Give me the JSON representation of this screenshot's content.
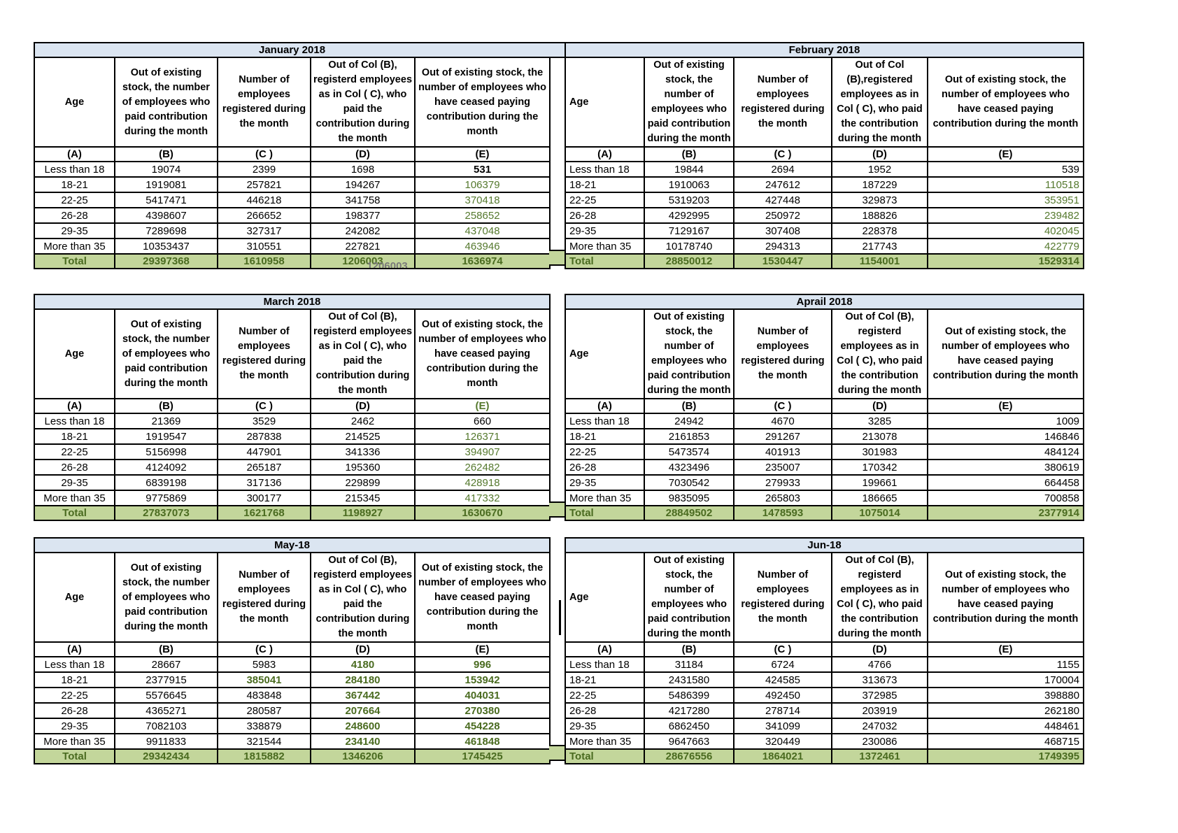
{
  "colors": {
    "title_bg": "#dbe5f1",
    "total_bg": "#c3d69b",
    "green": "#55792e",
    "dark_green": "#4a6b20",
    "ghost_gray": "#7a7a7a"
  },
  "column_letters": [
    "(A)",
    "(B)",
    "(C )",
    "(D)",
    "(E)"
  ],
  "overlay": {
    "text": "1206003"
  },
  "tables": [
    {
      "title": "January 2018",
      "variant": "left",
      "ghost_in_total_d": true,
      "letter_e_green": false,
      "headers": {
        "age": "Age",
        "b": "Out of existing stock, the number of employees who paid contribution during the month",
        "c": "Number of employees registered during the month",
        "d": "Out of Col (B), registerd employees as in Col ( C), who paid the contribution during the month",
        "e": "Out of existing stock, the number of  employees  who have ceased paying contribution during the month"
      },
      "rows": [
        {
          "age": "Less than 18",
          "values": [
            "19074",
            "2399",
            "1698",
            "531"
          ],
          "value_styles": [
            "",
            "",
            "",
            "b"
          ]
        },
        {
          "age": "18-21",
          "values": [
            "1919081",
            "257821",
            "194267",
            "106379"
          ],
          "value_styles": [
            "",
            "",
            "",
            "g"
          ]
        },
        {
          "age": "22-25",
          "values": [
            "5417471",
            "446218",
            "341758",
            "370418"
          ],
          "value_styles": [
            "",
            "",
            "",
            "g"
          ]
        },
        {
          "age": "26-28",
          "values": [
            "4398607",
            "266652",
            "198377",
            "258652"
          ],
          "value_styles": [
            "",
            "",
            "",
            "g"
          ]
        },
        {
          "age": "29-35",
          "values": [
            "7289698",
            "327317",
            "242082",
            "437048"
          ],
          "value_styles": [
            "",
            "",
            "",
            "g"
          ]
        },
        {
          "age": "More than 35",
          "values": [
            "10353437",
            "310551",
            "227821",
            "463946"
          ],
          "value_styles": [
            "",
            "",
            "",
            "g"
          ]
        }
      ],
      "total": {
        "label": "Total",
        "values": [
          "29397368",
          "1610958",
          "1206003",
          "1636974"
        ],
        "value_styles": [
          "",
          "",
          "",
          ""
        ]
      }
    },
    {
      "title": "February 2018",
      "variant": "right",
      "ghost_in_total_d": false,
      "letter_e_green": false,
      "headers": {
        "age": "Age",
        "b": "Out of existing stock, the number of employees who paid contribution during the month",
        "c": "Number of employees registered during the month",
        "d": "Out of Col (B),registered employees as in Col ( C), who paid the contribution during the month",
        "e": "Out of existing stock, the number of  employees  who have ceased paying contribution during the month"
      },
      "rows": [
        {
          "age": "Less than 18",
          "values": [
            "19844",
            "2694",
            "1952",
            "539"
          ],
          "value_styles": [
            "",
            "",
            "",
            ""
          ]
        },
        {
          "age": "18-21",
          "values": [
            "1910063",
            "247612",
            "187229",
            "110518"
          ],
          "value_styles": [
            "",
            "",
            "",
            "g"
          ]
        },
        {
          "age": "22-25",
          "values": [
            "5319203",
            "427448",
            "329873",
            "353951"
          ],
          "value_styles": [
            "",
            "",
            "",
            "g"
          ]
        },
        {
          "age": "26-28",
          "values": [
            "4292995",
            "250972",
            "188826",
            "239482"
          ],
          "value_styles": [
            "",
            "",
            "",
            "g"
          ]
        },
        {
          "age": "29-35",
          "values": [
            "7129167",
            "307408",
            "228378",
            "402045"
          ],
          "value_styles": [
            "",
            "",
            "",
            "g"
          ]
        },
        {
          "age": "More than 35",
          "values": [
            "10178740",
            "294313",
            "217743",
            "422779"
          ],
          "value_styles": [
            "",
            "",
            "",
            "g"
          ]
        }
      ],
      "total": {
        "label": "Total",
        "values": [
          "28850012",
          "1530447",
          "1154001",
          "1529314"
        ],
        "value_styles": [
          "",
          "",
          "",
          ""
        ]
      }
    },
    {
      "title": "March 2018",
      "variant": "left",
      "ghost_in_total_d": false,
      "letter_e_green": true,
      "headers": {
        "age": "Age",
        "b": "Out of existing stock, the number of employees who paid contribution during the month",
        "c": "Number of employees registered during the month",
        "d": "Out of Col (B), registerd employees as in Col ( C), who paid the contribution during the month",
        "e": "Out of existing stock, the number of  employees  who have ceased paying contribution during the month"
      },
      "rows": [
        {
          "age": "Less than 18",
          "values": [
            "21369",
            "3529",
            "2462",
            "660"
          ],
          "value_styles": [
            "",
            "",
            "",
            ""
          ]
        },
        {
          "age": "18-21",
          "values": [
            "1919547",
            "287838",
            "214525",
            "126371"
          ],
          "value_styles": [
            "",
            "",
            "",
            "g"
          ]
        },
        {
          "age": "22-25",
          "values": [
            "5156998",
            "447901",
            "341336",
            "394907"
          ],
          "value_styles": [
            "",
            "",
            "",
            "g"
          ]
        },
        {
          "age": "26-28",
          "values": [
            "4124092",
            "265187",
            "195360",
            "262482"
          ],
          "value_styles": [
            "",
            "",
            "",
            "g"
          ]
        },
        {
          "age": "29-35",
          "values": [
            "6839198",
            "317136",
            "229899",
            "428918"
          ],
          "value_styles": [
            "",
            "",
            "",
            "g"
          ]
        },
        {
          "age": "More than 35",
          "values": [
            "9775869",
            "300177",
            "215345",
            "417332"
          ],
          "value_styles": [
            "",
            "",
            "",
            "g"
          ]
        }
      ],
      "total": {
        "label": "Total",
        "values": [
          "27837073",
          "1621768",
          "1198927",
          "1630670"
        ],
        "value_styles": [
          "",
          "",
          "",
          ""
        ]
      }
    },
    {
      "title": "Aprail 2018",
      "variant": "right",
      "ghost_in_total_d": false,
      "letter_e_green": false,
      "headers": {
        "age": "Age",
        "b": "Out of existing stock, the number of employees who paid contribution during the month",
        "c": "Number of employees registered during the month",
        "d": "Out of Col (B), registerd employees as in Col ( C), who paid the contribution during the month",
        "e": "Out of existing stock, the number of  employees  who have ceased paying contribution during the month"
      },
      "rows": [
        {
          "age": "Less than 18",
          "values": [
            "24942",
            "4670",
            "3285",
            "1009"
          ],
          "value_styles": [
            "",
            "",
            "",
            ""
          ]
        },
        {
          "age": "18-21",
          "values": [
            "2161853",
            "291267",
            "213078",
            "146846"
          ],
          "value_styles": [
            "",
            "",
            "",
            ""
          ]
        },
        {
          "age": "22-25",
          "values": [
            "5473574",
            "401913",
            "301983",
            "484124"
          ],
          "value_styles": [
            "",
            "",
            "",
            ""
          ]
        },
        {
          "age": "26-28",
          "values": [
            "4323496",
            "235007",
            "170342",
            "380619"
          ],
          "value_styles": [
            "",
            "",
            "",
            ""
          ]
        },
        {
          "age": "29-35",
          "values": [
            "7030542",
            "279933",
            "199661",
            "664458"
          ],
          "value_styles": [
            "",
            "",
            "",
            ""
          ]
        },
        {
          "age": "More than 35",
          "values": [
            "9835095",
            "265803",
            "186665",
            "700858"
          ],
          "value_styles": [
            "",
            "",
            "",
            ""
          ]
        }
      ],
      "total": {
        "label": "Total",
        "values": [
          "28849502",
          "1478593",
          "1075014",
          "2377914"
        ],
        "value_styles": [
          "",
          "",
          "",
          "k"
        ]
      }
    },
    {
      "title": "May-18",
      "variant": "left",
      "ghost_in_total_d": false,
      "letter_e_green": false,
      "headers": {
        "age": "Age",
        "b": "Out of existing stock, the number of employees who paid contribution during the month",
        "c": "Number of employees registered during the month",
        "d": "Out of Col (B), registerd employees as in Col ( C), who paid the contribution during the month",
        "e": "Out of existing stock, the number of  employees  who have ceased paying contribution during the month"
      },
      "rows": [
        {
          "age": "Less than 18",
          "values": [
            "28667",
            "5983",
            "4180",
            "996"
          ],
          "value_styles": [
            "",
            "",
            "gb",
            "gb"
          ]
        },
        {
          "age": "18-21",
          "values": [
            "2377915",
            "385041",
            "284180",
            "153942"
          ],
          "value_styles": [
            "",
            "gb",
            "gb",
            "gb"
          ]
        },
        {
          "age": "22-25",
          "values": [
            "5576645",
            "483848",
            "367442",
            "404031"
          ],
          "value_styles": [
            "",
            "",
            "gb",
            "gb"
          ]
        },
        {
          "age": "26-28",
          "values": [
            "4365271",
            "280587",
            "207664",
            "270380"
          ],
          "value_styles": [
            "",
            "",
            "gb",
            "gb"
          ]
        },
        {
          "age": "29-35",
          "values": [
            "7082103",
            "338879",
            "248600",
            "454228"
          ],
          "value_styles": [
            "",
            "",
            "gb",
            "gb"
          ]
        },
        {
          "age": "More than 35",
          "values": [
            "9911833",
            "321544",
            "234140",
            "461848"
          ],
          "value_styles": [
            "",
            "",
            "gb",
            "gb"
          ]
        }
      ],
      "total": {
        "label": "Total",
        "values": [
          "29342434",
          "1815882",
          "1346206",
          "1745425"
        ],
        "value_styles": [
          "",
          "",
          "",
          ""
        ]
      }
    },
    {
      "title": "Jun-18",
      "variant": "right",
      "ghost_in_total_d": false,
      "letter_e_green": false,
      "headers": {
        "age": "Age",
        "b": "Out of existing stock, the number of employees who paid contribution during the month",
        "c": "Number of employees registered during the month",
        "d": "Out of Col (B), registerd employees as in Col ( C), who paid the contribution during the month",
        "e": "Out of existing stock, the number of  employees  who have ceased paying contribution during the month"
      },
      "rows": [
        {
          "age": "Less than 18",
          "values": [
            "31184",
            "6724",
            "4766",
            "1155"
          ],
          "value_styles": [
            "",
            "",
            "",
            ""
          ]
        },
        {
          "age": "18-21",
          "values": [
            "2431580",
            "424585",
            "313673",
            "170004"
          ],
          "value_styles": [
            "",
            "",
            "",
            ""
          ]
        },
        {
          "age": "22-25",
          "values": [
            "5486399",
            "492450",
            "372985",
            "398880"
          ],
          "value_styles": [
            "",
            "",
            "",
            ""
          ]
        },
        {
          "age": "26-28",
          "values": [
            "4217280",
            "278714",
            "203919",
            "262180"
          ],
          "value_styles": [
            "",
            "",
            "",
            ""
          ]
        },
        {
          "age": "29-35",
          "values": [
            "6862450",
            "341099",
            "247032",
            "448461"
          ],
          "value_styles": [
            "",
            "",
            "",
            ""
          ]
        },
        {
          "age": "More than 35",
          "values": [
            "9647663",
            "320449",
            "230086",
            "468715"
          ],
          "value_styles": [
            "",
            "",
            "",
            ""
          ]
        }
      ],
      "total": {
        "label": "Total",
        "values": [
          "28676556",
          "1864021",
          "1372461",
          "1749395"
        ],
        "value_styles": [
          "",
          "",
          "",
          ""
        ]
      }
    }
  ]
}
